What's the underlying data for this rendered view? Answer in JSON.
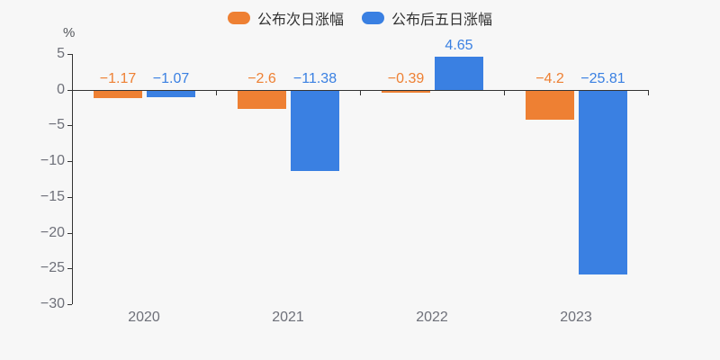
{
  "chart_data": {
    "type": "bar",
    "categories": [
      "2020",
      "2021",
      "2022",
      "2023"
    ],
    "series": [
      {
        "name": "公布次日涨幅",
        "color": "#ee8033",
        "values": [
          -1.17,
          -2.6,
          -0.39,
          -4.2
        ],
        "labels": [
          "−1.17",
          "−2.6",
          "−0.39",
          "−4.2"
        ]
      },
      {
        "name": "公布后五日涨幅",
        "color": "#3a80e2",
        "values": [
          -1.07,
          -11.38,
          4.65,
          -25.81
        ],
        "labels": [
          "−1.07",
          "−11.38",
          "4.65",
          "−25.81"
        ]
      }
    ],
    "title": "",
    "xlabel": "",
    "ylabel": "%",
    "ylim": [
      -30,
      5
    ],
    "yticks": [
      5,
      0,
      -5,
      -10,
      -15,
      -20,
      -25,
      -30
    ],
    "ytick_labels": [
      "5",
      "0",
      "−5",
      "−10",
      "−15",
      "−20",
      "−25",
      "−30"
    ],
    "legend_position": "top",
    "grid": false,
    "background_color": "#f7f7f7",
    "axis_color": "#333333",
    "tick_label_color": "#6e7079"
  }
}
